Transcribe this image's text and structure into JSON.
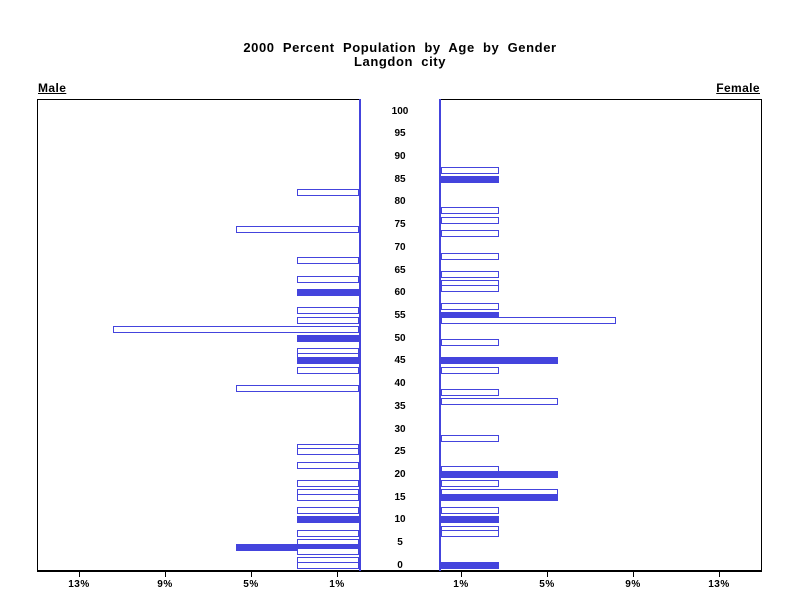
{
  "title": {
    "line1": "2000 Percent Population by Age by Gender",
    "line2": "Langdon city"
  },
  "panel_labels": {
    "male": "Male",
    "female": "Female"
  },
  "colors": {
    "bar": "#4444dd",
    "axis": "#000000",
    "background": "#ffffff"
  },
  "chart_data": {
    "type": "bar",
    "subtype": "population-pyramid",
    "title": "2000 Percent Population by Age by Gender",
    "subtitle": "Langdon city",
    "orientation": "horizontal, male bars extend left, female bars extend right",
    "value_unit": "percent of gender population",
    "age_axis": {
      "min": 0,
      "max": 100,
      "tick_step": 5,
      "tick_labels": [
        0,
        5,
        10,
        15,
        20,
        25,
        30,
        35,
        40,
        45,
        50,
        55,
        60,
        65,
        70,
        75,
        80,
        85,
        90,
        95,
        100
      ]
    },
    "x_axis": {
      "tick_values": [
        1,
        5,
        9,
        13
      ],
      "male_tick_labels": [
        "13%",
        "9%",
        "5%",
        "1%"
      ],
      "female_tick_labels": [
        "1%",
        "5%",
        "9%",
        "13%"
      ],
      "max_percent": 15,
      "grid": false
    },
    "legend": {
      "solid_bar": "filled blue bar",
      "hollow_bar": "white bar with blue outline"
    },
    "male": {
      "label": "Male",
      "bars": [
        {
          "age": 82,
          "percent": 2.86,
          "solid": false
        },
        {
          "age": 74,
          "percent": 5.71,
          "solid": false
        },
        {
          "age": 67,
          "percent": 2.86,
          "solid": false
        },
        {
          "age": 63,
          "percent": 2.86,
          "solid": false
        },
        {
          "age": 60,
          "percent": 2.86,
          "solid": true
        },
        {
          "age": 56,
          "percent": 2.86,
          "solid": false
        },
        {
          "age": 54,
          "percent": 2.86,
          "solid": false
        },
        {
          "age": 52,
          "percent": 11.43,
          "solid": false
        },
        {
          "age": 50,
          "percent": 2.86,
          "solid": true
        },
        {
          "age": 47,
          "percent": 2.86,
          "solid": false
        },
        {
          "age": 46,
          "percent": 2.86,
          "solid": false
        },
        {
          "age": 45,
          "percent": 2.86,
          "solid": true
        },
        {
          "age": 43,
          "percent": 2.86,
          "solid": false
        },
        {
          "age": 39,
          "percent": 5.71,
          "solid": false
        },
        {
          "age": 26,
          "percent": 2.86,
          "solid": false
        },
        {
          "age": 25,
          "percent": 2.86,
          "solid": false
        },
        {
          "age": 22,
          "percent": 2.86,
          "solid": false
        },
        {
          "age": 18,
          "percent": 2.86,
          "solid": false
        },
        {
          "age": 16,
          "percent": 2.86,
          "solid": false
        },
        {
          "age": 15,
          "percent": 2.86,
          "solid": false
        },
        {
          "age": 12,
          "percent": 2.86,
          "solid": false
        },
        {
          "age": 10,
          "percent": 2.86,
          "solid": true
        },
        {
          "age": 7,
          "percent": 2.86,
          "solid": false
        },
        {
          "age": 5,
          "percent": 2.86,
          "solid": false
        },
        {
          "age": 4,
          "percent": 5.71,
          "solid": true
        },
        {
          "age": 3,
          "percent": 2.86,
          "solid": false
        },
        {
          "age": 1,
          "percent": 2.86,
          "solid": false
        },
        {
          "age": 0,
          "percent": 2.86,
          "solid": false
        }
      ]
    },
    "female": {
      "label": "Female",
      "bars": [
        {
          "age": 87,
          "percent": 2.7,
          "solid": false
        },
        {
          "age": 85,
          "percent": 2.7,
          "solid": true
        },
        {
          "age": 78,
          "percent": 2.7,
          "solid": false
        },
        {
          "age": 76,
          "percent": 2.7,
          "solid": false
        },
        {
          "age": 73,
          "percent": 2.7,
          "solid": false
        },
        {
          "age": 68,
          "percent": 2.7,
          "solid": false
        },
        {
          "age": 64,
          "percent": 2.7,
          "solid": false
        },
        {
          "age": 62,
          "percent": 2.7,
          "solid": false
        },
        {
          "age": 61,
          "percent": 2.7,
          "solid": false
        },
        {
          "age": 57,
          "percent": 2.7,
          "solid": false
        },
        {
          "age": 55,
          "percent": 2.7,
          "solid": true
        },
        {
          "age": 54,
          "percent": 8.11,
          "solid": false
        },
        {
          "age": 49,
          "percent": 2.7,
          "solid": false
        },
        {
          "age": 45,
          "percent": 5.41,
          "solid": true
        },
        {
          "age": 43,
          "percent": 2.7,
          "solid": false
        },
        {
          "age": 38,
          "percent": 2.7,
          "solid": false
        },
        {
          "age": 36,
          "percent": 5.41,
          "solid": false
        },
        {
          "age": 28,
          "percent": 2.7,
          "solid": false
        },
        {
          "age": 21,
          "percent": 2.7,
          "solid": false
        },
        {
          "age": 20,
          "percent": 5.41,
          "solid": true
        },
        {
          "age": 18,
          "percent": 2.7,
          "solid": false
        },
        {
          "age": 16,
          "percent": 5.41,
          "solid": false
        },
        {
          "age": 15,
          "percent": 5.41,
          "solid": true
        },
        {
          "age": 12,
          "percent": 2.7,
          "solid": false
        },
        {
          "age": 10,
          "percent": 2.7,
          "solid": true
        },
        {
          "age": 8,
          "percent": 2.7,
          "solid": false
        },
        {
          "age": 7,
          "percent": 2.7,
          "solid": false
        },
        {
          "age": 0,
          "percent": 2.7,
          "solid": true
        }
      ]
    }
  }
}
